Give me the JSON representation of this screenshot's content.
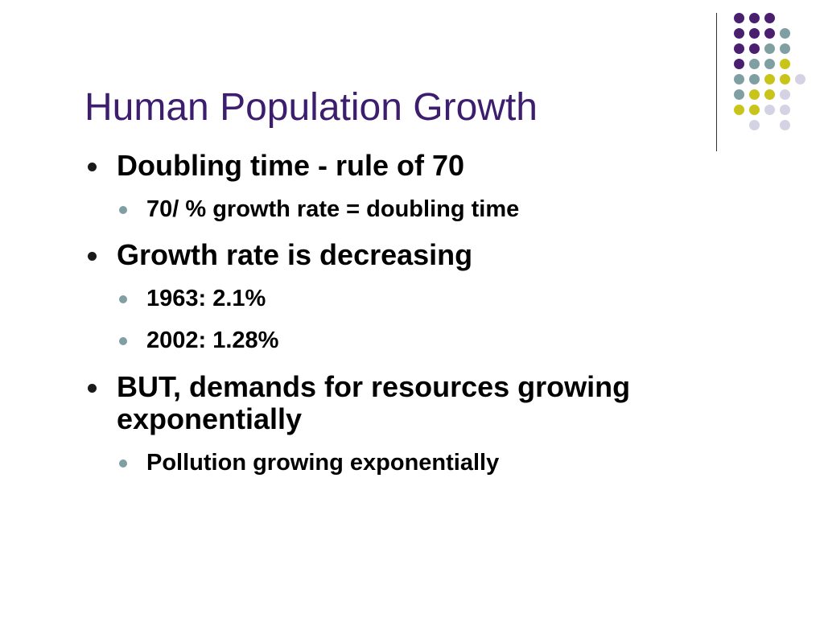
{
  "slide": {
    "title": "Human Population Growth",
    "bullets": [
      {
        "text": "Doubling time - rule of 70",
        "level": 1
      },
      {
        "text": "70/ % growth rate = doubling time",
        "level": 2
      },
      {
        "text": "Growth rate is decreasing",
        "level": 1
      },
      {
        "text": "1963:  2.1%",
        "level": 2
      },
      {
        "text": "2002: 1.28%",
        "level": 2
      },
      {
        "text": "BUT, demands for resources growing exponentially",
        "level": 1
      },
      {
        "text": "Pollution growing exponentially",
        "level": 2
      }
    ]
  },
  "theme": {
    "title_color": "#3d1e6e",
    "decor_colors": {
      "purple": "#4a1f6f",
      "teal": "#7f9fa3",
      "olive": "#c9c41a",
      "lavender": "#d4d3e3"
    },
    "decor_icon": "dot-grid-icon"
  }
}
